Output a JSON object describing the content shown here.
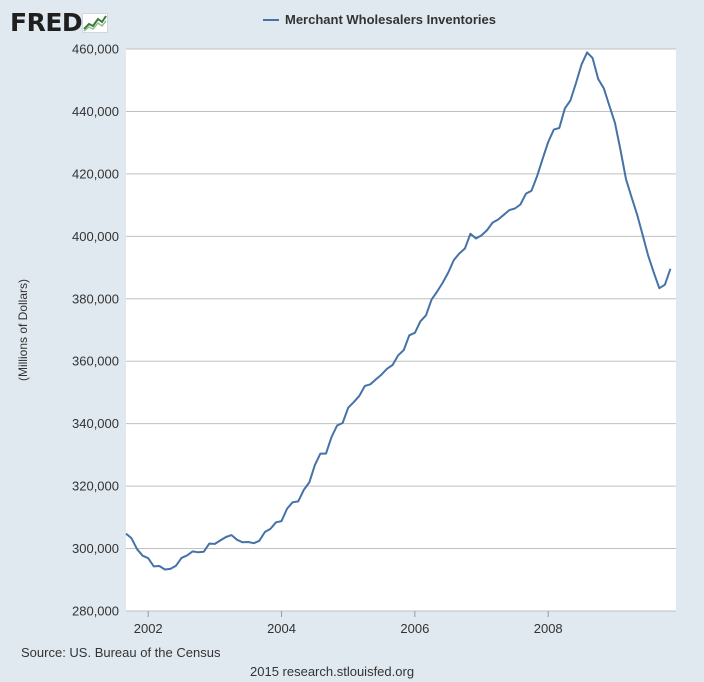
{
  "logo": {
    "text": "FRED",
    "icon": "chart-graph-icon"
  },
  "colors": {
    "background": "#e1e9f0",
    "plot_bg": "#ffffff",
    "line": "#4572a7",
    "grid": "#c0c0c0"
  },
  "footer": {
    "source": "Source: US. Bureau of the Census",
    "credit": "2015 research.stlouisfed.org"
  },
  "chart_data": {
    "type": "line",
    "title": "",
    "xlabel": "",
    "ylabel": "(Millions of Dollars)",
    "ylim": [
      280000,
      460000
    ],
    "xlim": [
      2001.667,
      2009.917
    ],
    "grid": "horizontal",
    "legend_position": "top-center",
    "x_ticks": [
      2002,
      2004,
      2006,
      2008
    ],
    "x_tick_labels": [
      "2002",
      "2004",
      "2006",
      "2008"
    ],
    "y_ticks": [
      280000,
      300000,
      320000,
      340000,
      360000,
      380000,
      400000,
      420000,
      440000,
      460000
    ],
    "y_tick_labels": [
      "280,000",
      "300,000",
      "320,000",
      "340,000",
      "360,000",
      "380,000",
      "400,000",
      "420,000",
      "440,000",
      "460,000"
    ],
    "series": [
      {
        "name": "Merchant Wholesalers Inventories",
        "x": [
          "2001-09",
          "2001-10",
          "2001-11",
          "2001-12",
          "2002-01",
          "2002-02",
          "2002-03",
          "2002-04",
          "2002-05",
          "2002-06",
          "2002-07",
          "2002-08",
          "2002-09",
          "2002-10",
          "2002-11",
          "2002-12",
          "2003-01",
          "2003-02",
          "2003-03",
          "2003-04",
          "2003-05",
          "2003-06",
          "2003-07",
          "2003-08",
          "2003-09",
          "2003-10",
          "2003-11",
          "2003-12",
          "2004-01",
          "2004-02",
          "2004-03",
          "2004-04",
          "2004-05",
          "2004-06",
          "2004-07",
          "2004-08",
          "2004-09",
          "2004-10",
          "2004-11",
          "2004-12",
          "2005-01",
          "2005-02",
          "2005-03",
          "2005-04",
          "2005-05",
          "2005-06",
          "2005-07",
          "2005-08",
          "2005-09",
          "2005-10",
          "2005-11",
          "2005-12",
          "2006-01",
          "2006-02",
          "2006-03",
          "2006-04",
          "2006-05",
          "2006-06",
          "2006-07",
          "2006-08",
          "2006-09",
          "2006-10",
          "2006-11",
          "2006-12",
          "2007-01",
          "2007-02",
          "2007-03",
          "2007-04",
          "2007-05",
          "2007-06",
          "2007-07",
          "2007-08",
          "2007-09",
          "2007-10",
          "2007-11",
          "2007-12",
          "2008-01",
          "2008-02",
          "2008-03",
          "2008-04",
          "2008-05",
          "2008-06",
          "2008-07",
          "2008-08",
          "2008-09",
          "2008-10",
          "2008-11",
          "2008-12",
          "2009-01",
          "2009-02",
          "2009-03",
          "2009-04",
          "2009-05",
          "2009-06",
          "2009-07",
          "2009-08",
          "2009-09",
          "2009-10",
          "2009-11"
        ],
        "values": [
          304800,
          303300,
          299800,
          297700,
          296900,
          294300,
          294400,
          293300,
          293500,
          294500,
          297000,
          297800,
          299100,
          298800,
          299000,
          301600,
          301500,
          302600,
          303700,
          304300,
          302800,
          302000,
          302100,
          301700,
          302500,
          305300,
          306300,
          308400,
          308800,
          312800,
          314800,
          315100,
          318800,
          321200,
          326800,
          330400,
          330400,
          335700,
          339400,
          340200,
          345100,
          346900,
          348900,
          352100,
          352600,
          354200,
          355700,
          357600,
          358800,
          361900,
          363600,
          368300,
          369100,
          372800,
          374700,
          379700,
          382300,
          385100,
          388400,
          392400,
          394500,
          396100,
          400800,
          399300,
          400300,
          402000,
          404400,
          405400,
          406900,
          408400,
          408900,
          410200,
          413700,
          414600,
          419300,
          424800,
          430200,
          434200,
          434700,
          441000,
          443500,
          449100,
          455000,
          458900,
          457100,
          450400,
          447400,
          441900,
          436400,
          427800,
          418300,
          412600,
          407000,
          400500,
          393800,
          388400,
          383400,
          384500,
          389600
        ]
      }
    ]
  }
}
